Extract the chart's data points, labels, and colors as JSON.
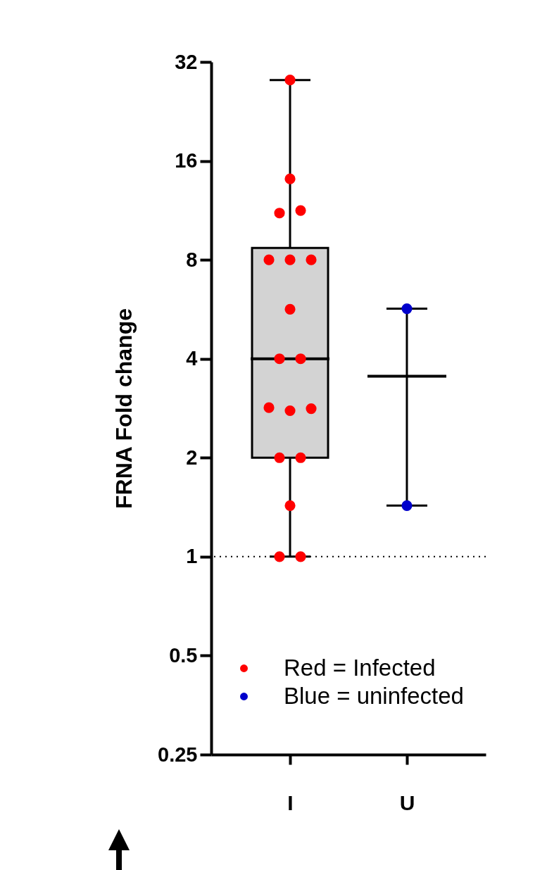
{
  "chart_data": {
    "type": "box",
    "ylabel": "FRNA Fold change",
    "categories": [
      "I",
      "U"
    ],
    "boxes": [
      {
        "low": 1,
        "q1": 2,
        "median": 4,
        "q3": 8.7,
        "high": 28.2
      },
      {
        "low": 1.43,
        "q1": 3.54,
        "median": 3.54,
        "q3": 3.54,
        "high": 5.68
      }
    ],
    "series": [
      {
        "name": "Red = Infected",
        "type": "scatter",
        "color": "#ff0000",
        "x": [
          "I",
          "I",
          "I",
          "I",
          "I",
          "I",
          "I",
          "I",
          "I",
          "I",
          "I",
          "I",
          "I",
          "I",
          "I",
          "I",
          "I",
          "I"
        ],
        "values": [
          28.2,
          14.1,
          11.1,
          11.3,
          8,
          8,
          8,
          5.66,
          4,
          4,
          2.84,
          2.78,
          2.82,
          2,
          2,
          1.43,
          1,
          1
        ]
      },
      {
        "name": "Blue = uninfected",
        "type": "scatter",
        "color": "#0000cc",
        "x": [
          "U",
          "U"
        ],
        "values": [
          5.68,
          1.43
        ]
      }
    ],
    "log": true,
    "ylim": [
      0.25,
      32
    ],
    "yticks": [
      0.25,
      0.5,
      1,
      2,
      4,
      8,
      16,
      32
    ],
    "ref_lines": [
      {
        "axis": "y",
        "value": 1,
        "line_style": "dotted"
      }
    ],
    "legend": "bottom right",
    "colors": [
      "#d3d3d3",
      "#000000"
    ],
    "marker": "circle",
    "grid": false
  }
}
